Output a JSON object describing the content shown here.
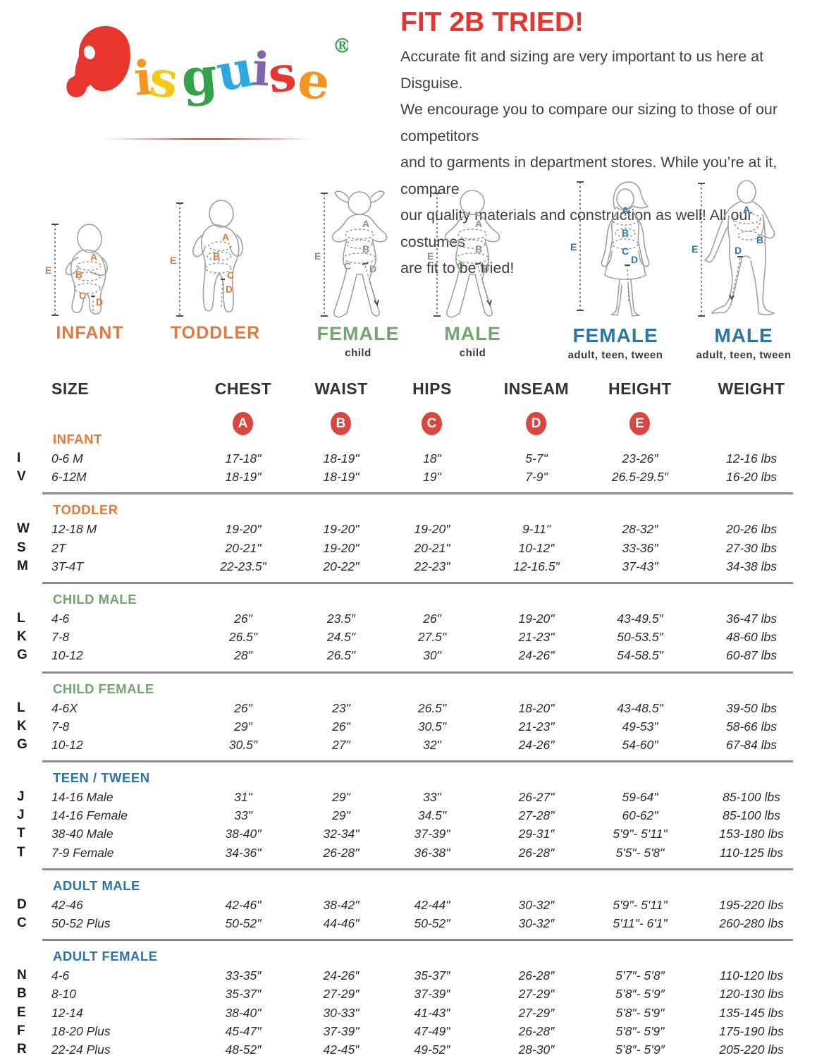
{
  "palette": {
    "red": "#E8352D",
    "circle_red": "#D7473F",
    "orange": "#E17A3D",
    "green": "#73A570",
    "blue": "#2E75A4"
  },
  "brand": {
    "letters": [
      {
        "ch": "D",
        "color": "#E8352D"
      },
      {
        "ch": "i",
        "color": "#F7941D"
      },
      {
        "ch": "s",
        "color": "#F5C816"
      },
      {
        "ch": "g",
        "color": "#34A14B"
      },
      {
        "ch": "u",
        "color": "#2BA9E0"
      },
      {
        "ch": "i",
        "color": "#7F66AC"
      },
      {
        "ch": "s",
        "color": "#E8352D"
      },
      {
        "ch": "e",
        "color": "#F7941D"
      }
    ],
    "registered_mark": "®"
  },
  "intro": {
    "title": "FIT 2B TRIED!",
    "lines": [
      "Accurate fit and sizing are very important to us here at Disguise.",
      "We encourage you to compare our sizing to those of our competitors",
      "and to garments in department stores. While you’re at it, compare",
      "our quality materials and construction as well! All our costumes",
      "are fit to be tried!"
    ]
  },
  "measure_letters": [
    "A",
    "B",
    "C",
    "D",
    "E"
  ],
  "figures": [
    {
      "label": "INFANT",
      "sub": "",
      "color": "#E17A3D"
    },
    {
      "label": "TODDLER",
      "sub": "",
      "color": "#E17A3D"
    },
    {
      "label": "FEMALE",
      "sub": "child",
      "color": "#73A570"
    },
    {
      "label": "MALE",
      "sub": "child",
      "color": "#73A570"
    },
    {
      "label": "FEMALE",
      "sub": "adult, teen, tween",
      "color": "#2E75A4"
    },
    {
      "label": "MALE",
      "sub": "adult, teen, tween",
      "color": "#2E75A4"
    }
  ],
  "table": {
    "columns": [
      "SIZE",
      "CHEST",
      "WAIST",
      "HIPS",
      "INSEAM",
      "HEIGHT",
      "WEIGHT"
    ],
    "sections": [
      {
        "title": "INFANT",
        "color": "#E17A3D",
        "rows": [
          {
            "code": "I",
            "size": "0-6 M",
            "values": [
              "17-18\"",
              "18-19\"",
              "18\"",
              "5-7\"",
              "23-26″",
              "12-16 lbs"
            ]
          },
          {
            "code": "V",
            "size": "6-12M",
            "values": [
              "18-19\"",
              "18-19\"",
              "19\"",
              "7-9\"",
              "26.5-29.5″",
              "16-20 lbs"
            ]
          }
        ]
      },
      {
        "title": "TODDLER",
        "color": "#E17A3D",
        "rows": [
          {
            "code": "W",
            "size": "12-18 M",
            "values": [
              "19-20\"",
              "19-20\"",
              "19-20″",
              "9-11\"",
              "28-32″",
              "20-26 lbs"
            ]
          },
          {
            "code": "S",
            "size": "2T",
            "values": [
              "20-21\"",
              "19-20\"",
              "20-21\"",
              "10-12″",
              "33-36\"",
              "27-30 lbs"
            ]
          },
          {
            "code": "M",
            "size": "3T-4T",
            "values": [
              "22-23.5\"",
              "20-22\"",
              "22-23\"",
              "12-16.5″",
              "37-43\"",
              "34-38 lbs"
            ]
          }
        ]
      },
      {
        "title": "CHILD MALE",
        "color": "#73A570",
        "rows": [
          {
            "code": "L",
            "size": "4-6",
            "values": [
              "26\"",
              "23.5″",
              "26\"",
              "19-20\"",
              "43-49.5″",
              "36-47 lbs"
            ]
          },
          {
            "code": "K",
            "size": "7-8",
            "values": [
              "26.5\"",
              "24.5\"",
              "27.5\"",
              "21-23\"",
              "50-53.5″",
              "48-60 lbs"
            ]
          },
          {
            "code": "G",
            "size": "10-12",
            "values": [
              "28\"",
              "26.5\"",
              "30\"",
              "24-26\"",
              "54-58.5\"",
              "60-87 lbs"
            ]
          }
        ]
      },
      {
        "title": "CHILD FEMALE",
        "color": "#73A570",
        "rows": [
          {
            "code": "L",
            "size": "4-6X",
            "values": [
              "26\"",
              "23\"",
              "26.5\"",
              "18-20\"",
              "43-48.5\"",
              "39-50 lbs"
            ]
          },
          {
            "code": "K",
            "size": "7-8",
            "values": [
              "29\"",
              "26\"",
              "30.5\"",
              "21-23\"",
              "49-53\"",
              "58-66 lbs"
            ]
          },
          {
            "code": "G",
            "size": "10-12",
            "values": [
              "30.5\"",
              "27\"",
              "32\"",
              "24-26\"",
              "54-60\"",
              "67-84 lbs"
            ]
          }
        ]
      },
      {
        "title": "TEEN / TWEEN",
        "color": "#2E75A4",
        "rows": [
          {
            "code": "J",
            "size": "14-16 Male",
            "values": [
              "31\"",
              "29\"",
              "33\"",
              "26-27\"",
              "59-64\"",
              "85-100 lbs"
            ]
          },
          {
            "code": "J",
            "size": "14-16 Female",
            "values": [
              "33\"",
              "29\"",
              "34.5\"",
              "27-28\"",
              "60-62\"",
              "85-100 lbs"
            ]
          },
          {
            "code": "T",
            "size": "38-40 Male",
            "values": [
              "38-40\"",
              "32-34\"",
              "37-39\"",
              "29-31″",
              "5'9\"- 5'11\"",
              "153-180 lbs"
            ]
          },
          {
            "code": "T",
            "size": "7-9 Female",
            "values": [
              "34-36\"",
              "26-28\"",
              "36-38\"",
              "26-28″",
              "5'5\"- 5'8\"",
              "110-125 lbs"
            ]
          }
        ]
      },
      {
        "title": "ADULT MALE",
        "color": "#2E75A4",
        "rows": [
          {
            "code": "D",
            "size": "42-46",
            "values": [
              "42-46\"",
              "38-42\"",
              "42-44\"",
              "30-32″",
              "5'9\"- 5'11\"",
              "195-220 lbs"
            ]
          },
          {
            "code": "C",
            "size": "50-52 Plus",
            "values": [
              "50-52\"",
              "44-46\"",
              "50-52\"",
              "30-32″",
              "5'11\"- 6'1\"",
              "260-280 lbs"
            ]
          }
        ]
      },
      {
        "title": "ADULT FEMALE",
        "color": "#2E75A4",
        "rows": [
          {
            "code": "N",
            "size": "4-6",
            "values": [
              "33-35″",
              "24-26″",
              "35-37″",
              "26-28″",
              "5’7″- 5’8″",
              "110-120 lbs"
            ]
          },
          {
            "code": "B",
            "size": "8-10",
            "values": [
              "35-37″",
              "27-29″",
              "37-39″",
              "27-29″",
              "5’8″- 5’9″",
              "120-130 lbs"
            ]
          },
          {
            "code": "E",
            "size": "12-14",
            "values": [
              "38-40\"",
              "30-33\"",
              "41-43″",
              "27-29″",
              "5'8\"- 5'9\"",
              "135-145 lbs"
            ]
          },
          {
            "code": "F",
            "size": "18-20 Plus",
            "values": [
              "45-47\"",
              "37-39\"",
              "47-49\"",
              "26-28″",
              "5'8\"- 5'9\"",
              "175-190 lbs"
            ]
          },
          {
            "code": "R",
            "size": "22-24 Plus",
            "values": [
              "48-52″",
              "42-45″",
              "49-52″",
              "28-30″",
              "5’8″- 5’9″",
              "205-220 lbs"
            ]
          }
        ]
      }
    ]
  }
}
